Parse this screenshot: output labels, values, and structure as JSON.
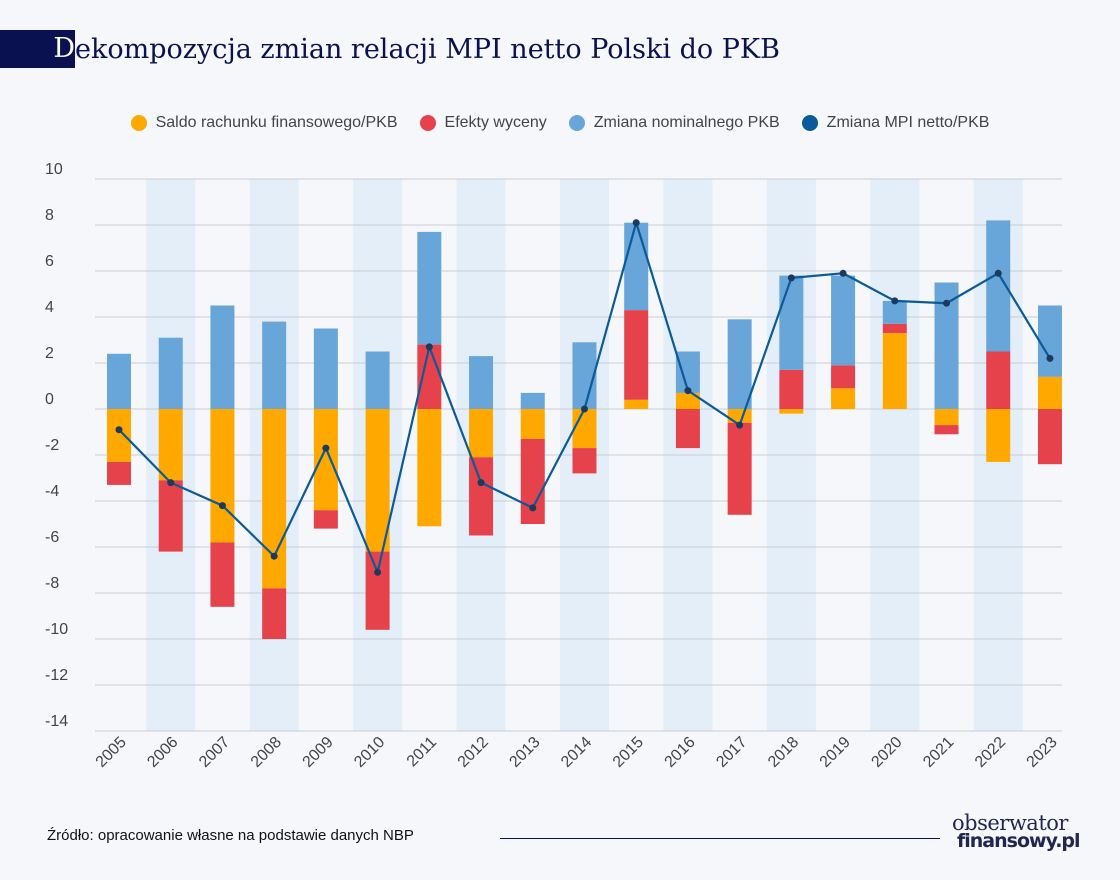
{
  "title": "Dekompozycja zmian relacji MPI netto Polski do PKB",
  "source": "Źródło: opracowanie własne na podstawie danych NBP",
  "logo": {
    "line1": "obserwator",
    "line2": "finansowy.pl"
  },
  "colors": {
    "saldo": "#ffa800",
    "wycena": "#e5424b",
    "pkb": "#68a5d9",
    "mpi": "#0b5a99",
    "band": "#e3eef8",
    "title": "#0a1150"
  },
  "chart_data": {
    "type": "bar",
    "title": "Dekompozycja zmian relacji MPI netto Polski do PKB",
    "categories": [
      "2005",
      "2006",
      "2007",
      "2008",
      "2009",
      "2010",
      "2011",
      "2012",
      "2013",
      "2014",
      "2015",
      "2016",
      "2017",
      "2018",
      "2019",
      "2020",
      "2021",
      "2022",
      "2023"
    ],
    "ylim": [
      -14,
      10
    ],
    "yticks": [
      10,
      8,
      6,
      4,
      2,
      0,
      -2,
      -4,
      -6,
      -8,
      -10,
      -12,
      -14
    ],
    "legend_position": "top",
    "series": [
      {
        "name": "Saldo rachunku finansowego/PKB",
        "type": "bar",
        "values": [
          -2.3,
          -3.1,
          -5.8,
          -7.8,
          -4.4,
          -6.2,
          -5.1,
          -2.1,
          -1.3,
          -1.7,
          0.4,
          0.7,
          -0.6,
          -0.2,
          0.9,
          3.3,
          -0.7,
          -2.3,
          1.4
        ]
      },
      {
        "name": "Efekty wyceny",
        "type": "bar",
        "values": [
          -1.0,
          -3.1,
          -2.8,
          -2.2,
          -0.8,
          -3.4,
          2.8,
          -3.4,
          -3.7,
          -1.1,
          3.9,
          -1.7,
          -4.0,
          1.7,
          1.0,
          0.4,
          -0.4,
          2.5,
          -2.4
        ]
      },
      {
        "name": "Zmiana nominalnego PKB",
        "type": "bar",
        "values": [
          2.4,
          3.1,
          4.5,
          3.8,
          3.5,
          2.5,
          4.9,
          2.3,
          0.7,
          2.9,
          3.8,
          1.8,
          3.9,
          4.1,
          3.9,
          1.0,
          5.5,
          5.7,
          3.1
        ]
      },
      {
        "name": "Zmiana MPI netto/PKB",
        "type": "line",
        "values": [
          -0.9,
          -3.2,
          -4.2,
          -6.4,
          -1.7,
          -7.1,
          2.7,
          -3.2,
          -4.3,
          0.0,
          8.1,
          0.8,
          -0.7,
          5.7,
          5.9,
          4.7,
          4.6,
          5.9,
          2.2
        ]
      }
    ]
  }
}
